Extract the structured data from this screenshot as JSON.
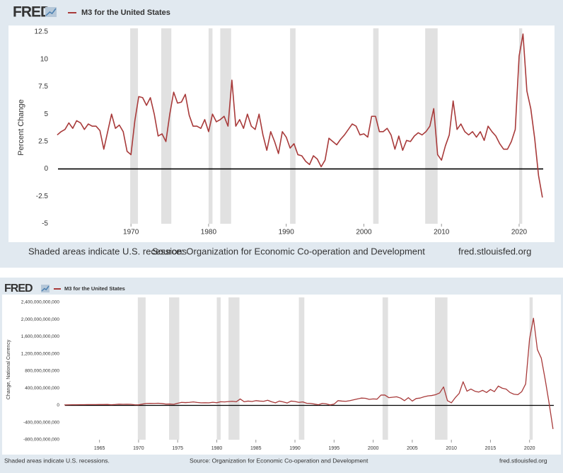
{
  "chart_data": [
    {
      "type": "line",
      "brand": "FRED",
      "y_label": "Percent Change",
      "note": "Shaded areas indicate U.S. recessions",
      "source": "Source: Organization for Economic Co-operation and Development",
      "url": "fred.stlouisfed.org",
      "xlim": [
        1960.6,
        2023.1
      ],
      "xticks": [
        1970,
        1980,
        1990,
        2000,
        2010,
        2020
      ],
      "ylim": [
        -5,
        12.5
      ],
      "yticks": [
        -5,
        -2.5,
        0,
        2.5,
        5,
        7.5,
        10,
        12.5
      ],
      "recessions": [
        [
          1969.9,
          1970.9
        ],
        [
          1973.9,
          1975.2
        ],
        [
          1980.0,
          1980.5
        ],
        [
          1981.5,
          1982.9
        ],
        [
          1990.5,
          1991.2
        ],
        [
          2001.2,
          2001.9
        ],
        [
          2007.9,
          2009.5
        ],
        [
          2020.0,
          2020.4
        ]
      ],
      "x": [
        1960.5,
        1961,
        1961.5,
        1962,
        1962.5,
        1963,
        1963.5,
        1964,
        1964.5,
        1965,
        1965.5,
        1966,
        1966.5,
        1967,
        1967.5,
        1968,
        1968.5,
        1969,
        1969.5,
        1970,
        1970.5,
        1971,
        1971.5,
        1972,
        1972.5,
        1973,
        1973.5,
        1974,
        1974.5,
        1975,
        1975.5,
        1976,
        1976.5,
        1977,
        1977.5,
        1978,
        1978.5,
        1979,
        1979.5,
        1980,
        1980.5,
        1981,
        1981.5,
        1982,
        1982.5,
        1983,
        1983.5,
        1984,
        1984.5,
        1985,
        1985.5,
        1986,
        1986.5,
        1987,
        1987.5,
        1988,
        1988.5,
        1989,
        1989.5,
        1990,
        1990.5,
        1991,
        1991.5,
        1992,
        1992.5,
        1993,
        1993.5,
        1994,
        1994.5,
        1995,
        1995.5,
        1996,
        1996.5,
        1997,
        1997.5,
        1998,
        1998.5,
        1999,
        1999.5,
        2000,
        2000.5,
        2001,
        2001.5,
        2002,
        2002.5,
        2003,
        2003.5,
        2004,
        2004.5,
        2005,
        2005.5,
        2006,
        2006.5,
        2007,
        2007.5,
        2008,
        2008.5,
        2009,
        2009.5,
        2010,
        2010.5,
        2011,
        2011.5,
        2012,
        2012.5,
        2013,
        2013.5,
        2014,
        2014.5,
        2015,
        2015.5,
        2016,
        2016.5,
        2017,
        2017.5,
        2018,
        2018.5,
        2019,
        2019.5,
        2020,
        2020.5,
        2021,
        2021.5,
        2022,
        2022.5,
        2023
      ],
      "series": [
        {
          "name": "M3 for the United States",
          "color": "#a83a3a",
          "values": [
            3.1,
            3.4,
            3.6,
            4.2,
            3.7,
            4.4,
            4.2,
            3.6,
            4.1,
            3.9,
            3.9,
            3.5,
            1.8,
            3.4,
            5.0,
            3.7,
            4.0,
            3.4,
            1.6,
            1.3,
            4.4,
            6.6,
            6.5,
            5.8,
            6.5,
            5.0,
            3.0,
            3.2,
            2.5,
            5.0,
            7.0,
            6.0,
            6.1,
            6.8,
            4.9,
            3.9,
            3.9,
            3.7,
            4.5,
            3.4,
            5.0,
            4.3,
            4.5,
            4.8,
            3.9,
            8.1,
            3.9,
            4.5,
            3.7,
            5.0,
            3.9,
            3.6,
            5.0,
            3.1,
            1.7,
            3.4,
            2.5,
            1.4,
            3.4,
            2.9,
            1.9,
            2.3,
            1.3,
            1.2,
            0.7,
            0.4,
            1.2,
            0.9,
            0.2,
            0.8,
            2.8,
            2.5,
            2.2,
            2.7,
            3.1,
            3.6,
            4.1,
            3.9,
            3.1,
            3.2,
            2.9,
            4.8,
            4.8,
            3.4,
            3.4,
            3.7,
            3.1,
            1.8,
            3.0,
            1.7,
            2.6,
            2.5,
            3.0,
            3.3,
            3.1,
            3.4,
            3.9,
            5.5,
            1.3,
            0.8,
            2.1,
            3.1,
            6.2,
            3.6,
            4.1,
            3.4,
            3.1,
            3.4,
            2.9,
            3.4,
            2.6,
            3.9,
            3.4,
            3.0,
            2.3,
            1.8,
            1.8,
            2.5,
            3.6,
            10.3,
            12.3,
            7.1,
            5.5,
            2.8,
            -0.6,
            -2.6
          ]
        }
      ]
    },
    {
      "type": "line",
      "brand": "FRED",
      "y_label": "Change, National Currency",
      "note": "Shaded areas indicate U.S. recessions.",
      "source": "Source: Organization for Economic Co-operation and Development",
      "url": "fred.stlouisfed.org",
      "xlim": [
        1960.6,
        2023.1
      ],
      "xticks": [
        1965,
        1970,
        1975,
        1980,
        1985,
        1990,
        1995,
        2000,
        2005,
        2010,
        2015,
        2020
      ],
      "ylim": [
        -800000000000,
        2400000000000
      ],
      "yticks": [
        {
          "value": -800000000000,
          "label": "-800,000,000,000"
        },
        {
          "value": -400000000000,
          "label": "-400,000,000,000"
        },
        0,
        {
          "value": 400000000000,
          "label": "400,000,000,000"
        },
        {
          "value": 800000000000,
          "label": "800,000,000,000"
        },
        {
          "value": 1200000000000,
          "label": "1,200,000,000,000"
        },
        {
          "value": 1600000000000,
          "label": "1,600,000,000,000"
        },
        {
          "value": 2000000000000,
          "label": "2,000,000,000,000"
        },
        {
          "value": 2400000000000,
          "label": "2,400,000,000,000"
        }
      ],
      "recessions": [
        [
          1969.9,
          1970.9
        ],
        [
          1973.9,
          1975.2
        ],
        [
          1980.0,
          1980.5
        ],
        [
          1981.5,
          1982.9
        ],
        [
          1990.5,
          1991.2
        ],
        [
          2001.2,
          2001.9
        ],
        [
          2007.9,
          2009.5
        ],
        [
          2020.0,
          2020.4
        ]
      ],
      "x": [
        1960.5,
        1961,
        1961.5,
        1962,
        1962.5,
        1963,
        1963.5,
        1964,
        1964.5,
        1965,
        1965.5,
        1966,
        1966.5,
        1967,
        1967.5,
        1968,
        1968.5,
        1969,
        1969.5,
        1970,
        1970.5,
        1971,
        1971.5,
        1972,
        1972.5,
        1973,
        1973.5,
        1974,
        1974.5,
        1975,
        1975.5,
        1976,
        1976.5,
        1977,
        1977.5,
        1978,
        1978.5,
        1979,
        1979.5,
        1980,
        1980.5,
        1981,
        1981.5,
        1982,
        1982.5,
        1983,
        1983.5,
        1984,
        1984.5,
        1985,
        1985.5,
        1986,
        1986.5,
        1987,
        1987.5,
        1988,
        1988.5,
        1989,
        1989.5,
        1990,
        1990.5,
        1991,
        1991.5,
        1992,
        1992.5,
        1993,
        1993.5,
        1994,
        1994.5,
        1995,
        1995.5,
        1996,
        1996.5,
        1997,
        1997.5,
        1998,
        1998.5,
        1999,
        1999.5,
        2000,
        2000.5,
        2001,
        2001.5,
        2002,
        2002.5,
        2003,
        2003.5,
        2004,
        2004.5,
        2005,
        2005.5,
        2006,
        2006.5,
        2007,
        2007.5,
        2008,
        2008.5,
        2009,
        2009.5,
        2010,
        2010.5,
        2011,
        2011.5,
        2012,
        2012.5,
        2013,
        2013.5,
        2014,
        2014.5,
        2015,
        2015.5,
        2016,
        2016.5,
        2017,
        2017.5,
        2018,
        2018.5,
        2019,
        2019.5,
        2020,
        2020.5,
        2021,
        2021.5,
        2022,
        2022.5,
        2023
      ],
      "series": [
        {
          "name": "M3 for the United States",
          "color": "#a83a3a",
          "values": [
            10000000000.0,
            12000000000.0,
            14000000000.0,
            15000000000.0,
            16000000000.0,
            17000000000.0,
            18000000000.0,
            18000000000.0,
            19000000000.0,
            20000000000.0,
            20000000000.0,
            22000000000.0,
            15000000000.0,
            20000000000.0,
            28000000000.0,
            25000000000.0,
            27000000000.0,
            25000000000.0,
            15000000000.0,
            12000000000.0,
            30000000000.0,
            45000000000.0,
            48000000000.0,
            45000000000.0,
            50000000000.0,
            42000000000.0,
            30000000000.0,
            32000000000.0,
            25000000000.0,
            50000000000.0,
            70000000000.0,
            65000000000.0,
            70000000000.0,
            80000000000.0,
            68000000000.0,
            60000000000.0,
            62000000000.0,
            60000000000.0,
            72000000000.0,
            62000000000.0,
            85000000000.0,
            80000000000.0,
            88000000000.0,
            95000000000.0,
            85000000000.0,
            150000000000.0,
            85000000000.0,
            100000000000.0,
            90000000000.0,
            110000000000.0,
            100000000000.0,
            95000000000.0,
            120000000000.0,
            85000000000.0,
            60000000000.0,
            100000000000.0,
            80000000000.0,
            55000000000.0,
            100000000000.0,
            90000000000.0,
            70000000000.0,
            80000000000.0,
            50000000000.0,
            45000000000.0,
            30000000000.0,
            15000000000.0,
            45000000000.0,
            35000000000.0,
            10000000000.0,
            30000000000.0,
            110000000000.0,
            100000000000.0,
            95000000000.0,
            110000000000.0,
            130000000000.0,
            150000000000.0,
            170000000000.0,
            165000000000.0,
            140000000000.0,
            150000000000.0,
            145000000000.0,
            240000000000.0,
            240000000000.0,
            180000000000.0,
            190000000000.0,
            200000000000.0,
            170000000000.0,
            110000000000.0,
            180000000000.0,
            100000000000.0,
            160000000000.0,
            170000000000.0,
            200000000000.0,
            220000000000.0,
            230000000000.0,
            250000000000.0,
            290000000000.0,
            430000000000.0,
            110000000000.0,
            60000000000.0,
            180000000000.0,
            280000000000.0,
            550000000000.0,
            330000000000.0,
            380000000000.0,
            330000000000.0,
            310000000000.0,
            350000000000.0,
            300000000000.0,
            370000000000.0,
            320000000000.0,
            450000000000.0,
            400000000000.0,
            380000000000.0,
            300000000000.0,
            260000000000.0,
            250000000000.0,
            320000000000.0,
            500000000000.0,
            1550000000000.0,
            2030000000000.0,
            1300000000000.0,
            1100000000000.0,
            600000000000.0,
            50000000000.0,
            -550000000000.0
          ]
        }
      ]
    }
  ]
}
